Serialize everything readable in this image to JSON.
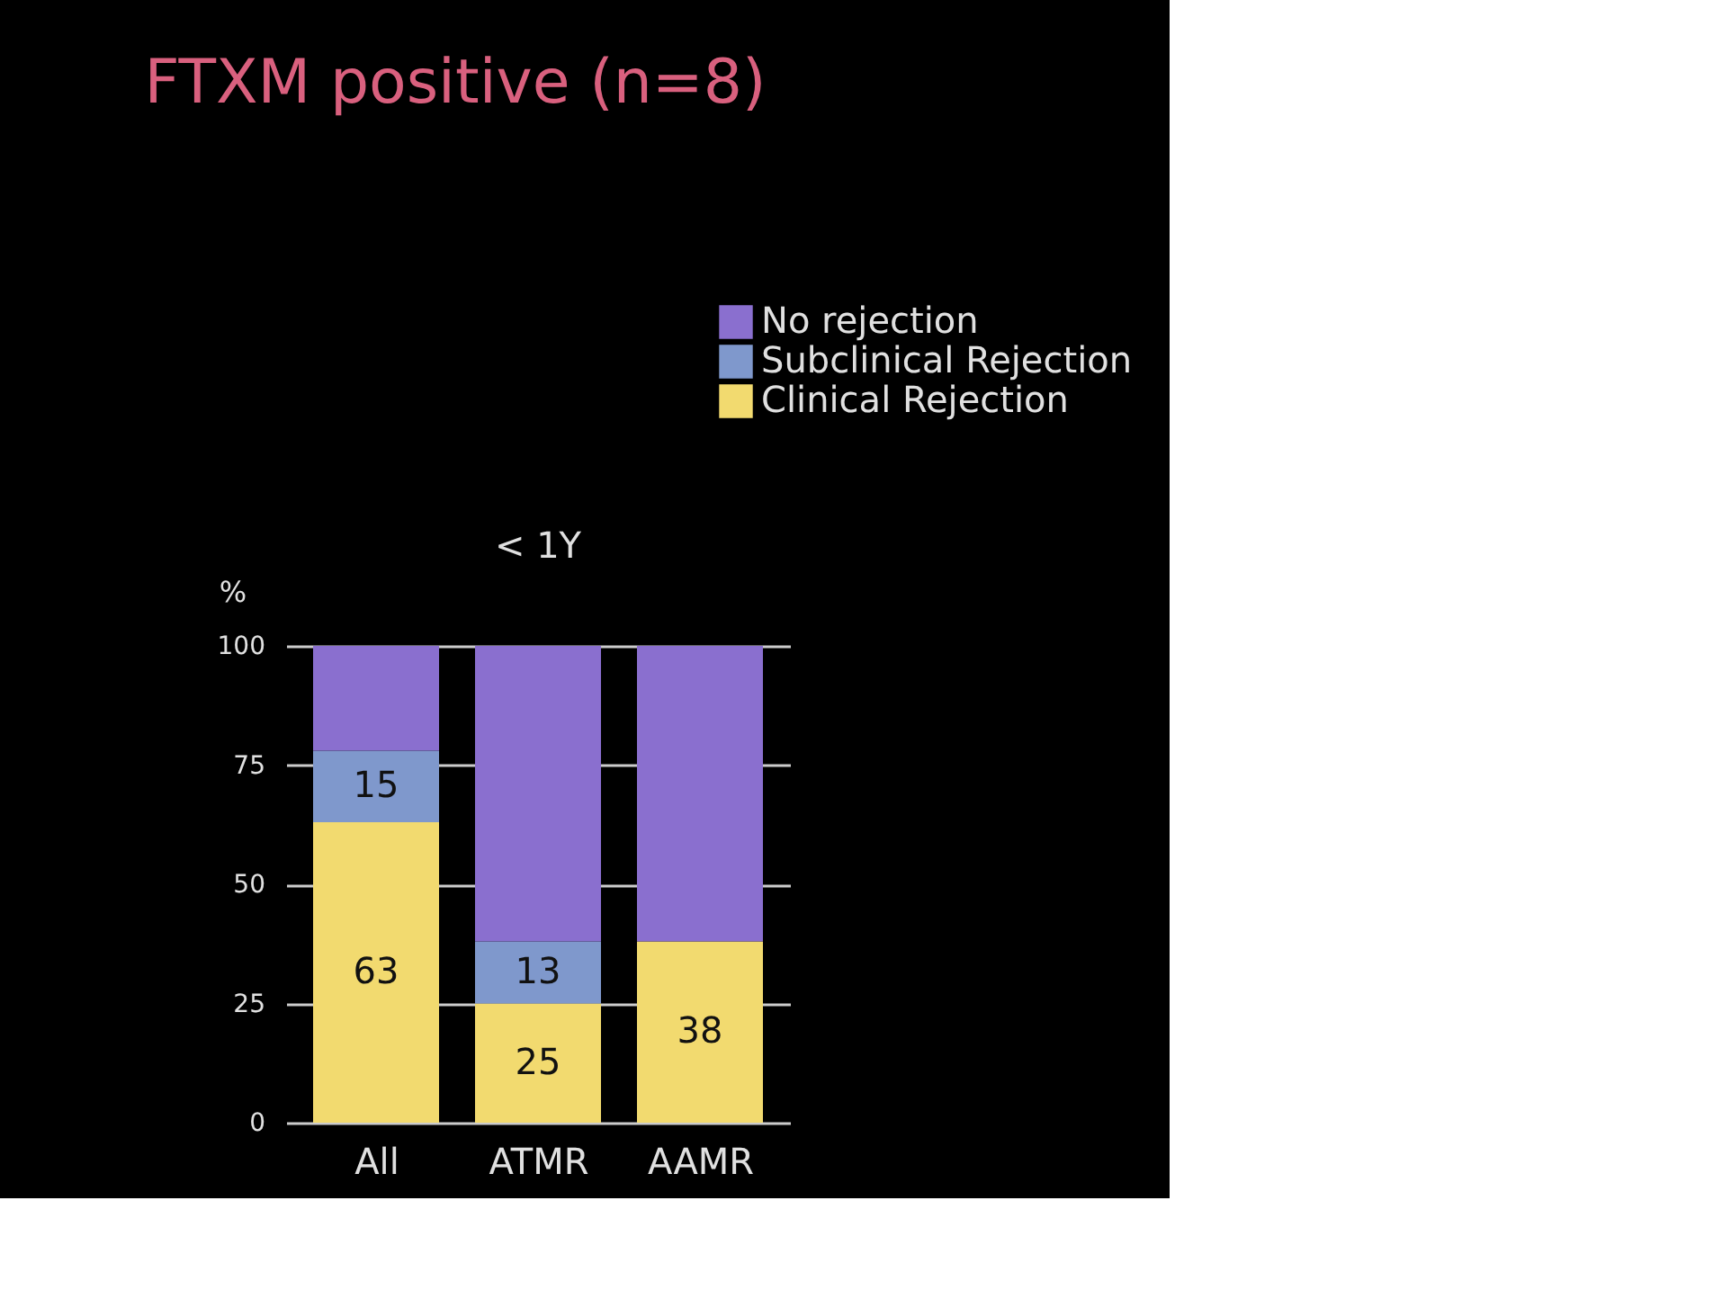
{
  "chart_data": {
    "type": "bar",
    "title": "FTXM positive (n=8)",
    "subtitle": "< 1Y",
    "ylabel": "%",
    "categories": [
      "All",
      "ATMR",
      "AAMR"
    ],
    "series": [
      {
        "name": "Clinical Rejection",
        "color": "#f2da6f",
        "values": [
          63,
          25,
          38
        ],
        "value_labels": [
          "63",
          "25",
          "38"
        ]
      },
      {
        "name": "Subclinical Rejection",
        "color": "#7f98cc",
        "values": [
          15,
          13,
          0
        ],
        "value_labels": [
          "15",
          "13",
          null
        ]
      },
      {
        "name": "No rejection",
        "color": "#8a6fcf",
        "values": [
          22,
          62,
          62
        ],
        "value_labels": [
          null,
          null,
          null
        ]
      }
    ],
    "stacked": true,
    "ylim": [
      0,
      100
    ],
    "yticks": [
      0,
      25,
      50,
      75,
      100
    ],
    "grid": "y",
    "legend": "top right"
  }
}
